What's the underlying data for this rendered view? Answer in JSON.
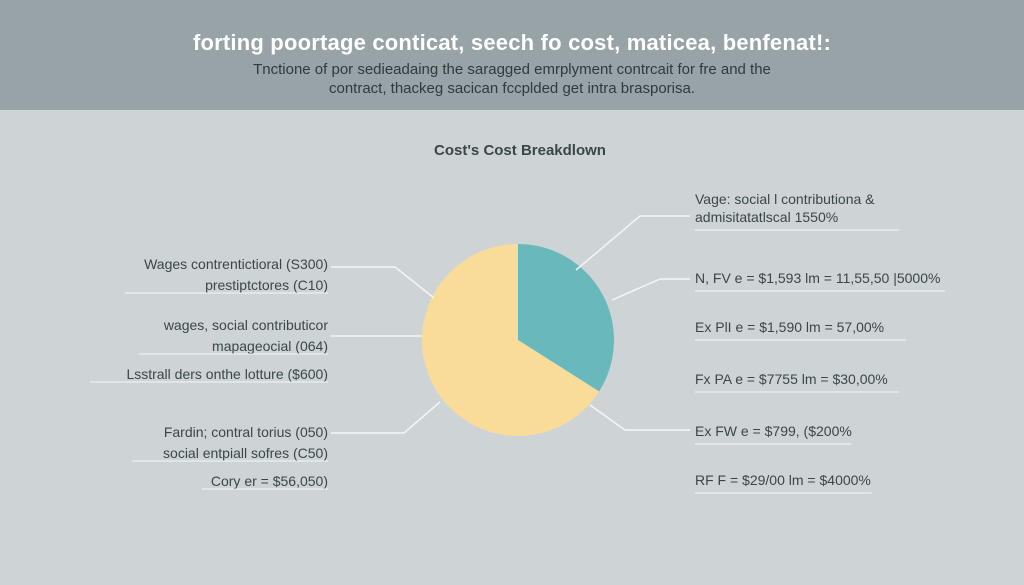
{
  "header": {
    "title": "forting poortage conticat, seech fo cost, maticea, benfenat!:",
    "subtitle_lines": [
      "Tnctione  of por sedieadaing the saragged emrplyment contrcait for fre and the",
      "contract, thackeg sacican fccplded get intra brasporisa."
    ]
  },
  "chart_data": {
    "type": "pie",
    "title": "Cost's Cost Breakdlown",
    "slices": [
      {
        "label": "Vage: social l contributiona & admisitatatlscal 1550%",
        "percent": 34,
        "color": "#69b8bc"
      },
      {
        "label": "",
        "percent": 66,
        "color": "#f9dc9a"
      }
    ],
    "left_annotations": [
      [
        "Wages contrentictioral (S300)",
        "prestiptctores (C10)"
      ],
      [
        "wages, social contributicor",
        "mapageocial (064)"
      ],
      [
        "Lsstrall ders onthe lotture ($600)"
      ],
      [
        "Fardin; contral torius (050)",
        "social entpiall sofres (C50)"
      ],
      [
        "Cory er = $56,050)"
      ]
    ],
    "right_annotations": [
      [
        "Vage: social l contributiona &",
        "admisitatatlscal 1550%"
      ],
      [
        "N, FV  e = $1,593  lm = 11,55,50 |5000%"
      ],
      [
        "Ex PlI  e = $1,590  lm = 57,00%"
      ],
      [
        "Fx PA  e = $7755  lm = $30,00%"
      ],
      [
        "Ex FW  e = $799, ($200%"
      ],
      [
        "RF F = $29/00  lm = $4000%"
      ]
    ]
  },
  "colors": {
    "banner": "#97a3a7",
    "background": "#ced4d6",
    "slice_teal": "#69b8bc",
    "slice_yellow": "#f9dc9a",
    "leader": "#f4f6f6"
  }
}
